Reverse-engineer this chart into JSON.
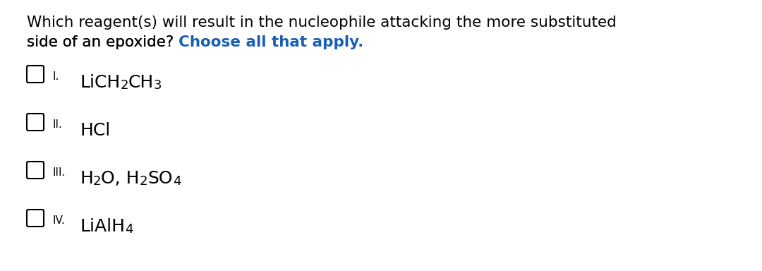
{
  "background_color": "#ffffff",
  "question_line1": "Which reagent(s) will result in the nucleophile attacking the more substituted",
  "question_line2": "side of an epoxide? ",
  "question_highlight": "Choose all that apply.",
  "question_color": "#000000",
  "highlight_color": "#1a5fb4",
  "options": [
    {
      "roman": "I.",
      "text_parts": [
        {
          "text": "LiCH",
          "sub": false
        },
        {
          "text": "2",
          "sub": true
        },
        {
          "text": "CH",
          "sub": false
        },
        {
          "text": "3",
          "sub": true
        }
      ]
    },
    {
      "roman": "II.",
      "text_parts": [
        {
          "text": "HCl",
          "sub": false
        }
      ]
    },
    {
      "roman": "III.",
      "text_parts": [
        {
          "text": "H",
          "sub": false
        },
        {
          "text": "2",
          "sub": true
        },
        {
          "text": "O, H",
          "sub": false
        },
        {
          "text": "2",
          "sub": true
        },
        {
          "text": "SO",
          "sub": false
        },
        {
          "text": "4",
          "sub": true
        }
      ]
    },
    {
      "roman": "IV.",
      "text_parts": [
        {
          "text": "LiAlH",
          "sub": false
        },
        {
          "text": "4",
          "sub": true
        }
      ]
    }
  ],
  "checkbox_color": "#000000",
  "font_size_question": 15.5,
  "font_size_roman": 11,
  "font_size_option": 18,
  "font_size_option_sub": 13,
  "figwidth": 10.8,
  "figheight": 3.84,
  "dpi": 100
}
